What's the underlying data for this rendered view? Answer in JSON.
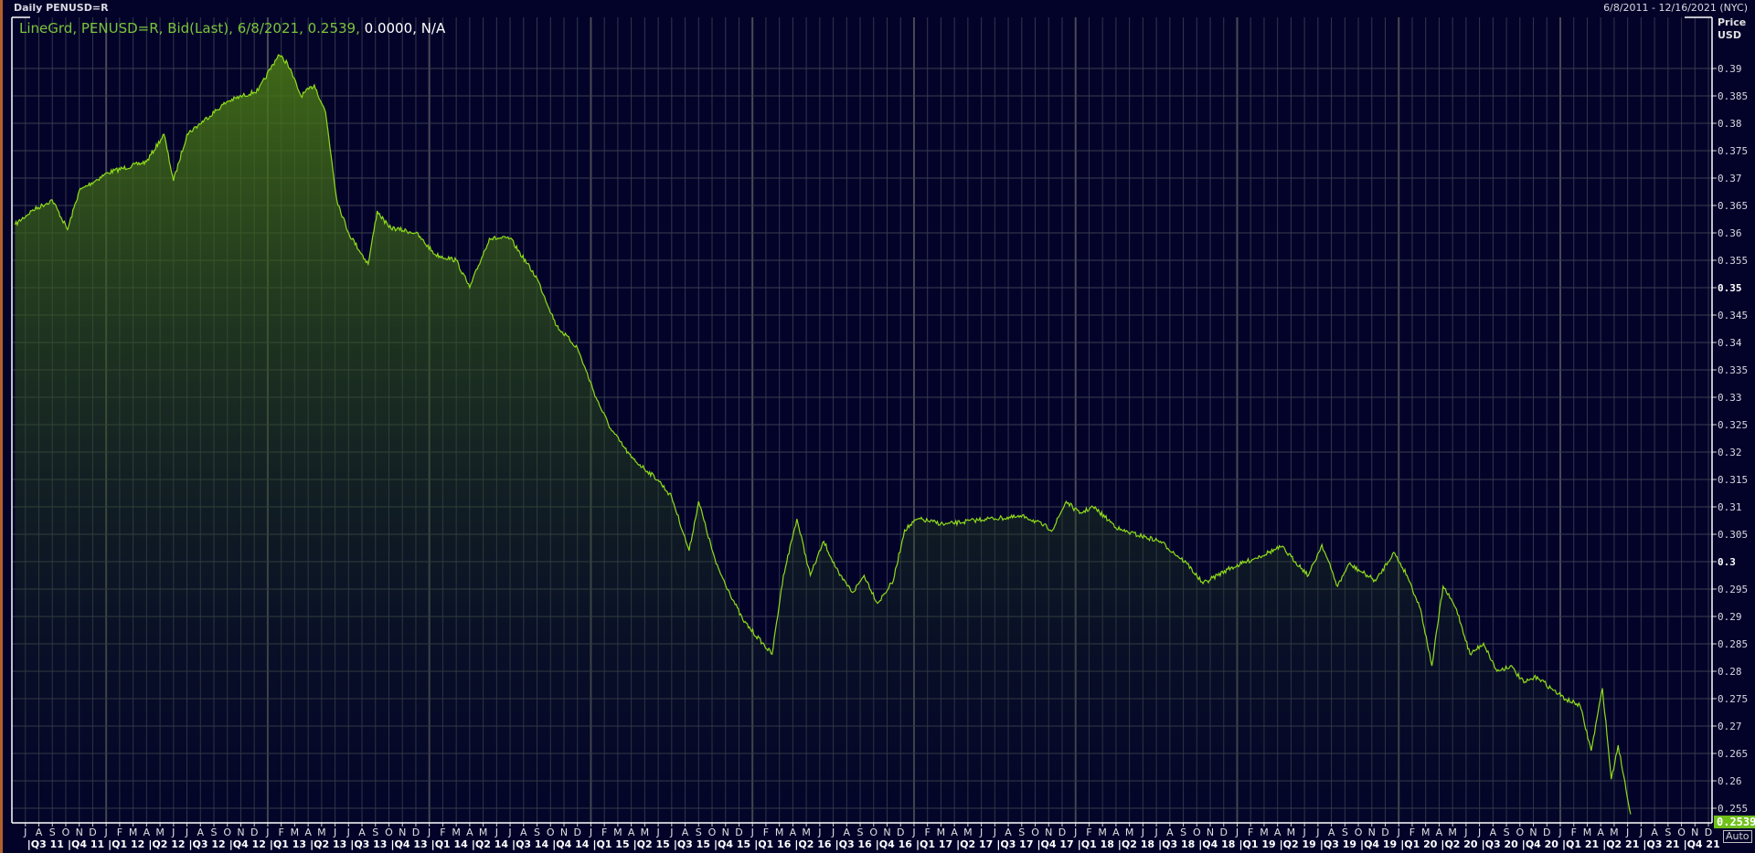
{
  "header": {
    "title": "Daily PENUSD=R",
    "date_range": "6/8/2011 - 12/16/2021 (NYC)"
  },
  "legend": {
    "style": "LineGrd",
    "ric": "PENUSD=R",
    "field": "Bid(Last)",
    "date": "6/8/2021",
    "value": "0.2539",
    "change": "0.0000",
    "pct": "N/A"
  },
  "axis": {
    "price_label": "Price",
    "unit_label": "USD",
    "last_value": "0.2539",
    "auto_label": "Auto"
  },
  "colors": {
    "background": "#03032a",
    "line": "#8fdc1a",
    "fill": "#3f6a12",
    "grid": "#3a3d4e",
    "badge": "#6fc01a"
  },
  "chart_data": {
    "type": "area",
    "title": "Daily PENUSD=R",
    "ylabel": "Price USD",
    "ylim": [
      0.2523,
      0.3992
    ],
    "xlim": [
      "2011-06-08",
      "2021-12-16"
    ],
    "grid": true,
    "yticks": [
      "0.255",
      "0.26",
      "0.265",
      "0.27",
      "0.275",
      "0.28",
      "0.285",
      "0.29",
      "0.295",
      "0.3",
      "0.305",
      "0.31",
      "0.315",
      "0.32",
      "0.325",
      "0.33",
      "0.335",
      "0.34",
      "0.345",
      "0.35",
      "0.355",
      "0.36",
      "0.365",
      "0.37",
      "0.375",
      "0.38",
      "0.385",
      "0.39"
    ],
    "month_labels": [
      "J",
      "A",
      "S",
      "O",
      "N",
      "D",
      "J",
      "F",
      "M",
      "A",
      "M",
      "J",
      "J",
      "A",
      "S",
      "O",
      "N",
      "D",
      "J",
      "F",
      "M",
      "A",
      "M",
      "J",
      "J",
      "A",
      "S",
      "O",
      "N",
      "D",
      "J",
      "F",
      "M",
      "A",
      "M",
      "J",
      "J",
      "A",
      "S",
      "O",
      "N",
      "D",
      "J",
      "F",
      "M",
      "A",
      "M",
      "J",
      "J",
      "A",
      "S",
      "O",
      "N",
      "D",
      "J",
      "F",
      "M",
      "A",
      "M",
      "J",
      "J",
      "A",
      "S",
      "O",
      "N",
      "D",
      "J",
      "F",
      "M",
      "A",
      "M",
      "J",
      "J",
      "A",
      "S",
      "O",
      "N",
      "D",
      "J",
      "F",
      "M",
      "A",
      "M",
      "J",
      "J",
      "A",
      "S",
      "O",
      "N",
      "D",
      "J",
      "F",
      "M",
      "A",
      "M",
      "J",
      "J",
      "A",
      "S",
      "O",
      "N",
      "D",
      "J",
      "F",
      "M",
      "A",
      "M",
      "J",
      "J",
      "A",
      "S",
      "O",
      "N",
      "D",
      "J",
      "F",
      "M",
      "A",
      "M",
      "J",
      "J",
      "A",
      "S",
      "O",
      "N",
      "D"
    ],
    "quarter_labels": [
      "Q3 11",
      "Q4 11",
      "Q1 12",
      "Q2 12",
      "Q3 12",
      "Q4 12",
      "Q1 13",
      "Q2 13",
      "Q3 13",
      "Q4 13",
      "Q1 14",
      "Q2 14",
      "Q3 14",
      "Q4 14",
      "Q1 15",
      "Q2 15",
      "Q3 15",
      "Q4 15",
      "Q1 16",
      "Q2 16",
      "Q3 16",
      "Q4 16",
      "Q1 17",
      "Q2 17",
      "Q3 17",
      "Q4 17",
      "Q1 18",
      "Q2 18",
      "Q3 18",
      "Q4 18",
      "Q1 19",
      "Q2 19",
      "Q3 19",
      "Q4 19",
      "Q1 20",
      "Q2 20",
      "Q3 20",
      "Q4 20",
      "Q1 21",
      "Q2 21",
      "Q3 21",
      "Q4 21"
    ],
    "series": [
      {
        "dates": [
          "2011-06-08",
          "2011-07-15",
          "2011-09-01",
          "2011-10-05",
          "2011-11-01",
          "2012-01-05",
          "2012-04-01",
          "2012-05-10",
          "2012-06-01",
          "2012-07-01",
          "2012-10-01",
          "2012-12-10",
          "2013-01-25",
          "2013-02-15",
          "2013-03-15",
          "2013-04-15",
          "2013-05-10",
          "2013-06-05",
          "2013-07-01",
          "2013-08-15",
          "2013-09-05",
          "2013-10-01",
          "2013-12-01",
          "2014-01-15",
          "2014-03-01",
          "2014-04-01",
          "2014-05-15",
          "2014-07-01",
          "2014-09-01",
          "2014-10-15",
          "2014-12-01",
          "2015-01-15",
          "2015-02-15",
          "2015-04-01",
          "2015-06-01",
          "2015-07-01",
          "2015-08-10",
          "2015-09-01",
          "2015-10-10",
          "2015-11-10",
          "2015-12-10",
          "2016-02-15",
          "2016-03-10",
          "2016-04-10",
          "2016-05-10",
          "2016-06-10",
          "2016-07-15",
          "2016-08-15",
          "2016-09-10",
          "2016-10-10",
          "2016-11-15",
          "2016-12-10",
          "2017-01-10",
          "2017-03-10",
          "2017-06-10",
          "2017-09-10",
          "2017-11-10",
          "2017-12-10",
          "2018-01-10",
          "2018-02-10",
          "2018-04-10",
          "2018-07-10",
          "2018-09-10",
          "2018-10-15",
          "2018-12-10",
          "2019-02-10",
          "2019-04-10",
          "2019-06-10",
          "2019-07-10",
          "2019-08-15",
          "2019-09-10",
          "2019-11-10",
          "2019-12-20",
          "2020-01-20",
          "2020-02-20",
          "2020-03-15",
          "2020-04-10",
          "2020-05-10",
          "2020-06-10",
          "2020-07-10",
          "2020-08-10",
          "2020-09-10",
          "2020-10-10",
          "2020-11-10",
          "2020-12-10",
          "2021-01-15",
          "2021-02-15",
          "2021-03-10",
          "2021-04-05",
          "2021-04-25",
          "2021-05-10",
          "2021-06-08"
        ],
        "values": [
          0.3615,
          0.364,
          0.366,
          0.3606,
          0.3677,
          0.371,
          0.373,
          0.378,
          0.3695,
          0.378,
          0.384,
          0.386,
          0.3925,
          0.391,
          0.385,
          0.387,
          0.382,
          0.366,
          0.36,
          0.3543,
          0.364,
          0.361,
          0.36,
          0.356,
          0.355,
          0.35,
          0.359,
          0.359,
          0.3517,
          0.343,
          0.339,
          0.3295,
          0.3243,
          0.319,
          0.3149,
          0.3118,
          0.302,
          0.311,
          0.2996,
          0.2944,
          0.2893,
          0.2831,
          0.2975,
          0.3078,
          0.2975,
          0.3037,
          0.2975,
          0.2944,
          0.2975,
          0.2924,
          0.2965,
          0.3058,
          0.3078,
          0.3068,
          0.3078,
          0.3082,
          0.3058,
          0.311,
          0.3088,
          0.31,
          0.3058,
          0.3037,
          0.2996,
          0.296,
          0.2986,
          0.3006,
          0.3027,
          0.2975,
          0.3031,
          0.2955,
          0.2996,
          0.2965,
          0.3017,
          0.2975,
          0.2913,
          0.281,
          0.2955,
          0.2913,
          0.2831,
          0.2851,
          0.28,
          0.281,
          0.2779,
          0.279,
          0.2769,
          0.2748,
          0.2738,
          0.2655,
          0.2769,
          0.2603,
          0.2665,
          0.2539
        ]
      }
    ]
  }
}
